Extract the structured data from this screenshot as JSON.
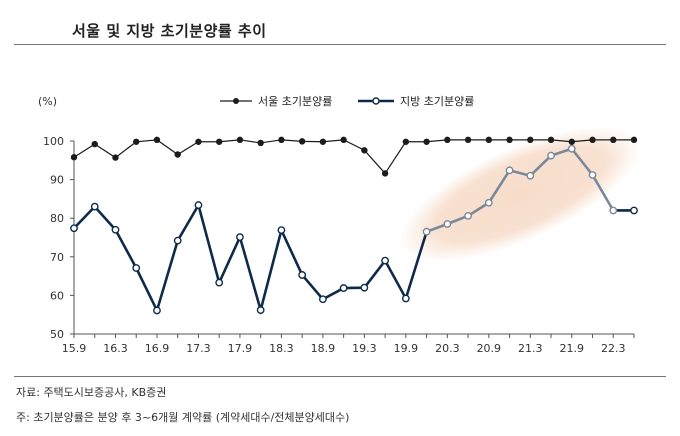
{
  "page": {
    "title": "서울 및 지방 초기분양률 추이",
    "source": "자료: 주택도시보증공사, KB증권",
    "footnote": "주: 초기분양률은 분양 후 3~6개월 계약률 (계약세대수/전체분양세대수)"
  },
  "colors": {
    "seoul": "#1c1c1c",
    "local": "#0e2a4a",
    "local_highlight": "#7a8899",
    "highlight_fill": "#f7dcc9",
    "axis": "#555555"
  },
  "chart_data": {
    "type": "line",
    "y_unit_label": "(%)",
    "ylim": [
      50,
      100
    ],
    "y_ticks": [
      50,
      60,
      70,
      80,
      90,
      100
    ],
    "x_tick_labels": [
      "15.9",
      "16.3",
      "16.9",
      "17.3",
      "17.9",
      "18.3",
      "18.9",
      "19.3",
      "19.9",
      "20.3",
      "20.9",
      "21.3",
      "21.9",
      "22.3"
    ],
    "n_points": 28,
    "highlight_range": [
      17,
      26
    ],
    "series": [
      {
        "name": "서울 초기분양률",
        "marker": "filled",
        "values": [
          95.8,
          99.2,
          95.7,
          99.8,
          100.3,
          96.5,
          99.8,
          99.8,
          100.3,
          99.5,
          100.3,
          99.9,
          99.8,
          100.3,
          97.6,
          91.6,
          99.8,
          99.8,
          100.3,
          100.3,
          100.3,
          100.3,
          100.3,
          100.3,
          99.8,
          100.3,
          100.3,
          100.3
        ]
      },
      {
        "name": "지방 초기분양률",
        "marker": "hollow",
        "values": [
          77.4,
          83.0,
          77.0,
          67.1,
          56.1,
          74.2,
          83.4,
          63.3,
          75.1,
          56.2,
          76.9,
          65.3,
          59.0,
          61.9,
          62.0,
          69.0,
          59.2,
          76.5,
          78.5,
          80.6,
          84.0,
          92.4,
          91.0,
          96.2,
          98.0,
          91.2,
          82.0,
          82.0
        ]
      }
    ]
  }
}
